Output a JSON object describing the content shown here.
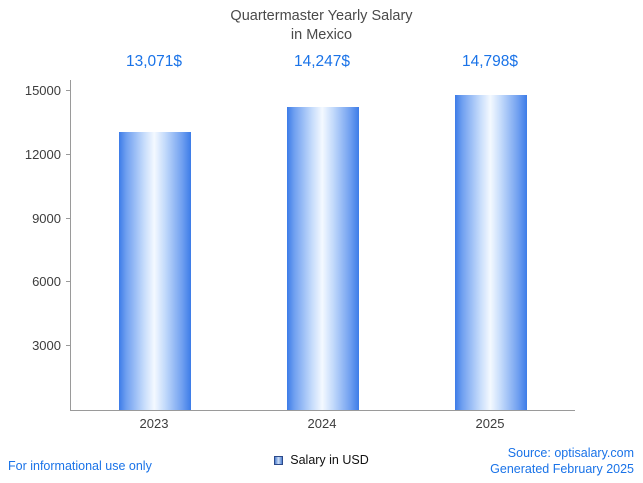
{
  "title": {
    "line1": "Quartermaster Yearly Salary",
    "line2": "in Mexico"
  },
  "chart_data": {
    "type": "bar",
    "title": "Quartermaster Yearly Salary in Mexico",
    "categories": [
      "2023",
      "2024",
      "2025"
    ],
    "values": [
      13071,
      14247,
      14798
    ],
    "value_labels": [
      "13,071$",
      "14,247$",
      "14,798$"
    ],
    "xlabel": "",
    "ylabel": "",
    "ylim": [
      0,
      15000
    ],
    "yticks": [
      3000,
      6000,
      9000,
      12000,
      15000
    ],
    "grid": false,
    "legend": "Salary in USD",
    "legend_position": "bottom",
    "bar_color_edge": "#3c7ce8",
    "bar_color_center": "#f4f9ff",
    "label_color": "#1a73e8"
  },
  "footer": {
    "disclaimer": "For informational use only",
    "source": "Source: optisalary.com",
    "generated": "Generated February 2025"
  },
  "colors": {
    "accent_blue": "#1a73e8",
    "axis_gray": "#9a9a9a",
    "text_gray": "#3d3d3d",
    "title_gray": "#4a4a4a"
  }
}
